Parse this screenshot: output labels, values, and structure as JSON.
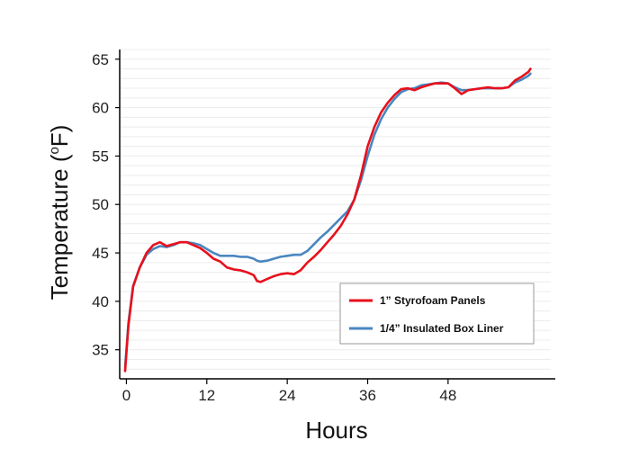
{
  "chart_data": {
    "type": "line",
    "xlabel": "Hours",
    "ylabel_main": "Temperature (",
    "ylabel_sup": "o",
    "ylabel_end": "F)",
    "x_ticks": [
      0,
      12,
      24,
      36,
      48
    ],
    "y_ticks": [
      35,
      40,
      45,
      50,
      55,
      60,
      65
    ],
    "xlim": [
      -1,
      64
    ],
    "ylim": [
      32,
      66
    ],
    "grid": "horizontal",
    "legend_position": "lower-right",
    "series": [
      {
        "name": "1” Styrofoam Panels",
        "color": "#e8101c",
        "points": [
          [
            -0.2,
            32.8
          ],
          [
            0.3,
            37.5
          ],
          [
            1,
            41.5
          ],
          [
            2,
            43.5
          ],
          [
            3,
            45
          ],
          [
            4,
            45.8
          ],
          [
            5,
            46.1
          ],
          [
            6,
            45.7
          ],
          [
            7,
            45.9
          ],
          [
            8,
            46.1
          ],
          [
            9,
            46.1
          ],
          [
            10,
            45.8
          ],
          [
            11,
            45.5
          ],
          [
            12,
            45
          ],
          [
            13,
            44.4
          ],
          [
            14,
            44.1
          ],
          [
            15,
            43.5
          ],
          [
            16,
            43.3
          ],
          [
            17,
            43.2
          ],
          [
            18,
            43
          ],
          [
            19,
            42.7
          ],
          [
            19.5,
            42.1
          ],
          [
            20,
            42
          ],
          [
            21,
            42.3
          ],
          [
            22,
            42.6
          ],
          [
            23,
            42.8
          ],
          [
            24,
            42.9
          ],
          [
            25,
            42.8
          ],
          [
            26,
            43.2
          ],
          [
            27,
            44
          ],
          [
            28,
            44.6
          ],
          [
            29,
            45.3
          ],
          [
            30,
            46.1
          ],
          [
            31,
            46.9
          ],
          [
            32,
            47.8
          ],
          [
            33,
            49
          ],
          [
            34,
            50.5
          ],
          [
            35,
            53
          ],
          [
            36,
            56
          ],
          [
            37,
            58
          ],
          [
            38,
            59.5
          ],
          [
            39,
            60.5
          ],
          [
            40,
            61.3
          ],
          [
            41,
            61.9
          ],
          [
            42,
            62
          ],
          [
            43,
            61.8
          ],
          [
            44,
            62.1
          ],
          [
            45,
            62.3
          ],
          [
            46,
            62.5
          ],
          [
            47,
            62.5
          ],
          [
            48,
            62.5
          ],
          [
            49,
            62
          ],
          [
            50,
            61.4
          ],
          [
            51,
            61.8
          ],
          [
            52,
            61.9
          ],
          [
            53,
            62
          ],
          [
            54,
            62.1
          ],
          [
            55,
            62
          ],
          [
            56,
            62
          ],
          [
            57,
            62.1
          ],
          [
            58,
            62.8
          ],
          [
            59,
            63.2
          ],
          [
            60,
            63.7
          ],
          [
            60.3,
            64
          ]
        ]
      },
      {
        "name": "1/4” Insulated Box Liner",
        "color": "#4a86c0",
        "points": [
          [
            -0.2,
            33.2
          ],
          [
            0.3,
            37.8
          ],
          [
            1,
            41.6
          ],
          [
            2,
            43.5
          ],
          [
            3,
            44.8
          ],
          [
            4,
            45.4
          ],
          [
            5,
            45.7
          ],
          [
            6,
            45.6
          ],
          [
            7,
            45.8
          ],
          [
            8,
            46.1
          ],
          [
            9,
            46.1
          ],
          [
            10,
            46
          ],
          [
            11,
            45.8
          ],
          [
            12,
            45.4
          ],
          [
            13,
            45
          ],
          [
            14,
            44.7
          ],
          [
            15,
            44.7
          ],
          [
            16,
            44.7
          ],
          [
            17,
            44.6
          ],
          [
            18,
            44.6
          ],
          [
            19,
            44.4
          ],
          [
            19.5,
            44.2
          ],
          [
            20,
            44.1
          ],
          [
            21,
            44.2
          ],
          [
            22,
            44.4
          ],
          [
            23,
            44.6
          ],
          [
            24,
            44.7
          ],
          [
            25,
            44.8
          ],
          [
            26,
            44.8
          ],
          [
            27,
            45.2
          ],
          [
            28,
            45.9
          ],
          [
            29,
            46.6
          ],
          [
            30,
            47.2
          ],
          [
            31,
            47.9
          ],
          [
            32,
            48.6
          ],
          [
            33,
            49.3
          ],
          [
            34,
            50.5
          ],
          [
            35,
            52.5
          ],
          [
            36,
            55
          ],
          [
            37,
            57.2
          ],
          [
            38,
            58.8
          ],
          [
            39,
            60
          ],
          [
            40,
            60.9
          ],
          [
            41,
            61.6
          ],
          [
            42,
            61.9
          ],
          [
            43,
            62
          ],
          [
            44,
            62.3
          ],
          [
            45,
            62.4
          ],
          [
            46,
            62.5
          ],
          [
            47,
            62.6
          ],
          [
            48,
            62.5
          ],
          [
            49,
            62.1
          ],
          [
            50,
            61.8
          ],
          [
            51,
            61.8
          ],
          [
            52,
            61.9
          ],
          [
            53,
            62
          ],
          [
            54,
            62
          ],
          [
            55,
            62
          ],
          [
            56,
            62
          ],
          [
            57,
            62.1
          ],
          [
            58,
            62.6
          ],
          [
            59,
            62.9
          ],
          [
            60,
            63.3
          ],
          [
            60.3,
            63.5
          ]
        ]
      }
    ]
  }
}
